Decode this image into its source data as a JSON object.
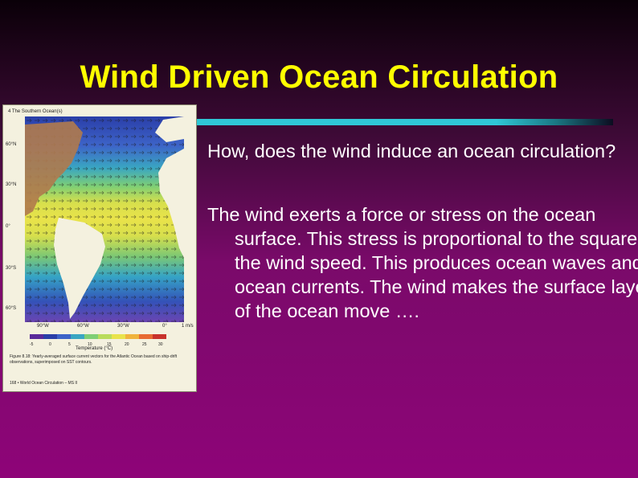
{
  "slide": {
    "title": "Wind Driven Ocean Circulation",
    "paragraphs": [
      "How, does the wind induce an ocean circulation?",
      "The wind exerts a force or stress on the ocean surface. This stress is proportional to the square of the wind speed. This produces ocean waves and ocean currents. The wind makes the surface layer of the ocean move …."
    ]
  },
  "figure": {
    "header": "4 The Southern Ocean(s)",
    "lat_labels": [
      "60°N",
      "30°N",
      "0°",
      "30°S",
      "60°S"
    ],
    "lon_labels": [
      "90°W",
      "60°W",
      "30°W",
      "0°"
    ],
    "colorbar_ticks": [
      "-5",
      "0",
      "5",
      "10",
      "15",
      "20",
      "25",
      "30"
    ],
    "colorbar_unit": "1 m/s",
    "colorbar_label": "Temperature (°C)",
    "caption": "Figure 8.18: Yearly-averaged surface current vectors for the Atlantic Ocean based on ship-drift observations, superimposed on SST contours.",
    "footer": "168 • World Ocean Circulation – MS II"
  }
}
